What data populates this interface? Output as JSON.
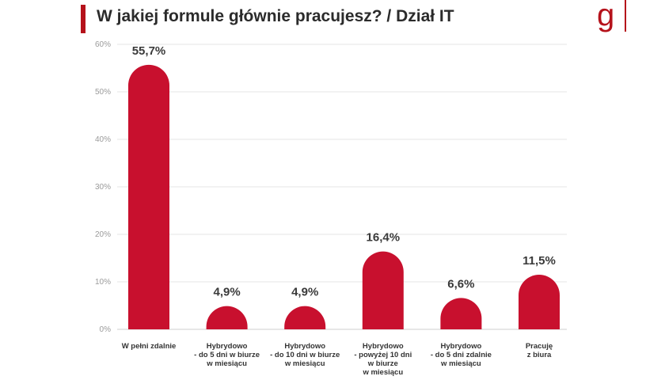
{
  "header": {
    "title": "W jakiej formule głównie pracujesz? / Dział IT",
    "logo_letter": "g",
    "accent_color": "#b5121b"
  },
  "chart_data": {
    "type": "bar",
    "title": "W jakiej formule głównie pracujesz? / Dział IT",
    "xlabel": "",
    "ylabel": "",
    "ylim": [
      0,
      60
    ],
    "grid": true,
    "yticks": [
      "0%",
      "10%",
      "20%",
      "30%",
      "40%",
      "50%",
      "60%"
    ],
    "categories": [
      [
        "W pełni zdalnie"
      ],
      [
        "Hybrydowo",
        "- do 5 dni w biurze",
        "w miesiącu"
      ],
      [
        "Hybrydowo",
        "- do 10 dni w biurze",
        "w miesiącu"
      ],
      [
        "Hybrydowo",
        "- powyżej 10 dni",
        "w biurze",
        "w miesiącu"
      ],
      [
        "Hybrydowo",
        "- do 5 dni zdalnie",
        "w miesiącu"
      ],
      [
        "Pracuję",
        "z biura"
      ]
    ],
    "values": [
      55.7,
      4.9,
      4.9,
      16.4,
      6.6,
      11.5
    ],
    "data_labels": [
      "55,7%",
      "4,9%",
      "4,9%",
      "16,4%",
      "6,6%",
      "11,5%"
    ],
    "bar_color": "#c8102e"
  }
}
